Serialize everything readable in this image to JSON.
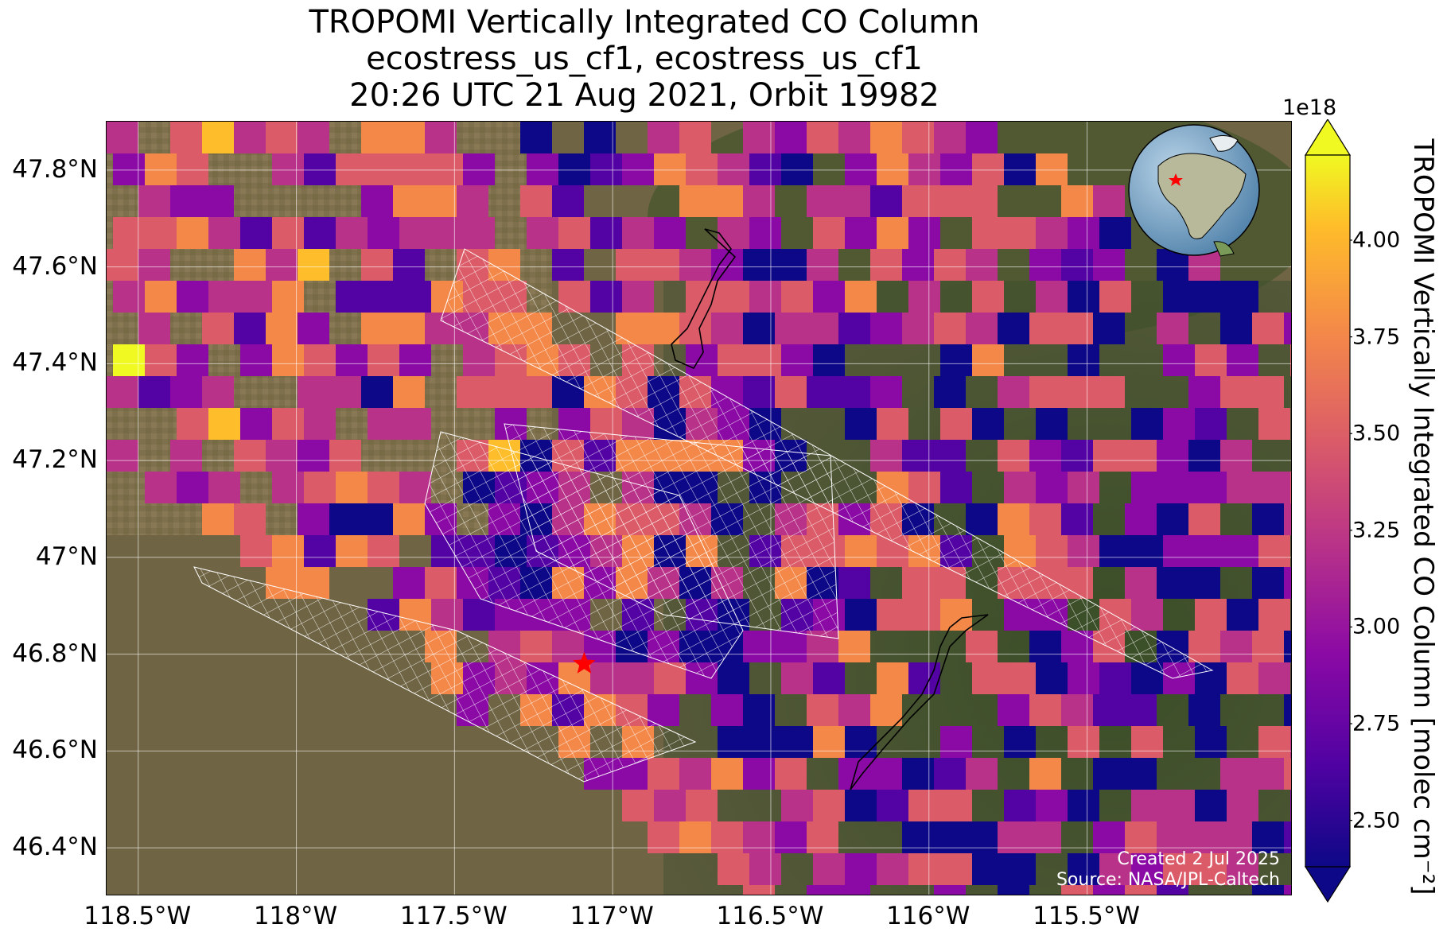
{
  "title": {
    "line1": "TROPOMI Vertically Integrated CO Column",
    "line2": "ecostress_us_cf1, ecostress_us_cf1",
    "line3": "20:26 UTC 21 Aug 2021, Orbit 19982"
  },
  "map": {
    "lon_range": [
      -118.6,
      -114.85
    ],
    "lat_range": [
      46.3,
      47.9
    ],
    "lon_ticks": [
      {
        "value": -118.5,
        "label": "118.5°W"
      },
      {
        "value": -118.0,
        "label": "118°W"
      },
      {
        "value": -117.5,
        "label": "117.5°W"
      },
      {
        "value": -117.0,
        "label": "117°W"
      },
      {
        "value": -116.5,
        "label": "116.5°W"
      },
      {
        "value": -116.0,
        "label": "116°W"
      },
      {
        "value": -115.5,
        "label": "115.5°W"
      }
    ],
    "lat_ticks": [
      {
        "value": 47.8,
        "label": "47.8°N"
      },
      {
        "value": 47.6,
        "label": "47.6°N"
      },
      {
        "value": 47.4,
        "label": "47.4°N"
      },
      {
        "value": 47.2,
        "label": "47.2°N"
      },
      {
        "value": 47.0,
        "label": "47°N"
      },
      {
        "value": 46.8,
        "label": "46.8°N"
      },
      {
        "value": 46.6,
        "label": "46.6°N"
      },
      {
        "value": 46.4,
        "label": "46.4°N"
      }
    ],
    "marker": {
      "lon": -117.09,
      "lat": 46.78,
      "symbol": "star",
      "color": "#ff0000"
    },
    "grid": true,
    "basemap": "satellite imagery",
    "colormap": "plasma"
  },
  "colorbar": {
    "label": "TROPOMI Vertically Integrated CO Column [molec cm$^{-2}$]",
    "label_display": "TROPOMI Vertically Integrated CO Column [molec cm⁻²]",
    "exponent": "1e18",
    "vmin": 2.38,
    "vmax": 4.22,
    "ticks": [
      "2.50",
      "2.75",
      "3.00",
      "3.25",
      "3.50",
      "3.75",
      "4.00"
    ],
    "tick_values": [
      2.5,
      2.75,
      3.0,
      3.25,
      3.5,
      3.75,
      4.0
    ],
    "extend": "both"
  },
  "inset": {
    "type": "globe",
    "marker": "star",
    "marker_color": "#ff0000"
  },
  "credits": {
    "created": "Created 2 Jul 2025",
    "source": "Source: NASA/JPL-Caltech"
  }
}
